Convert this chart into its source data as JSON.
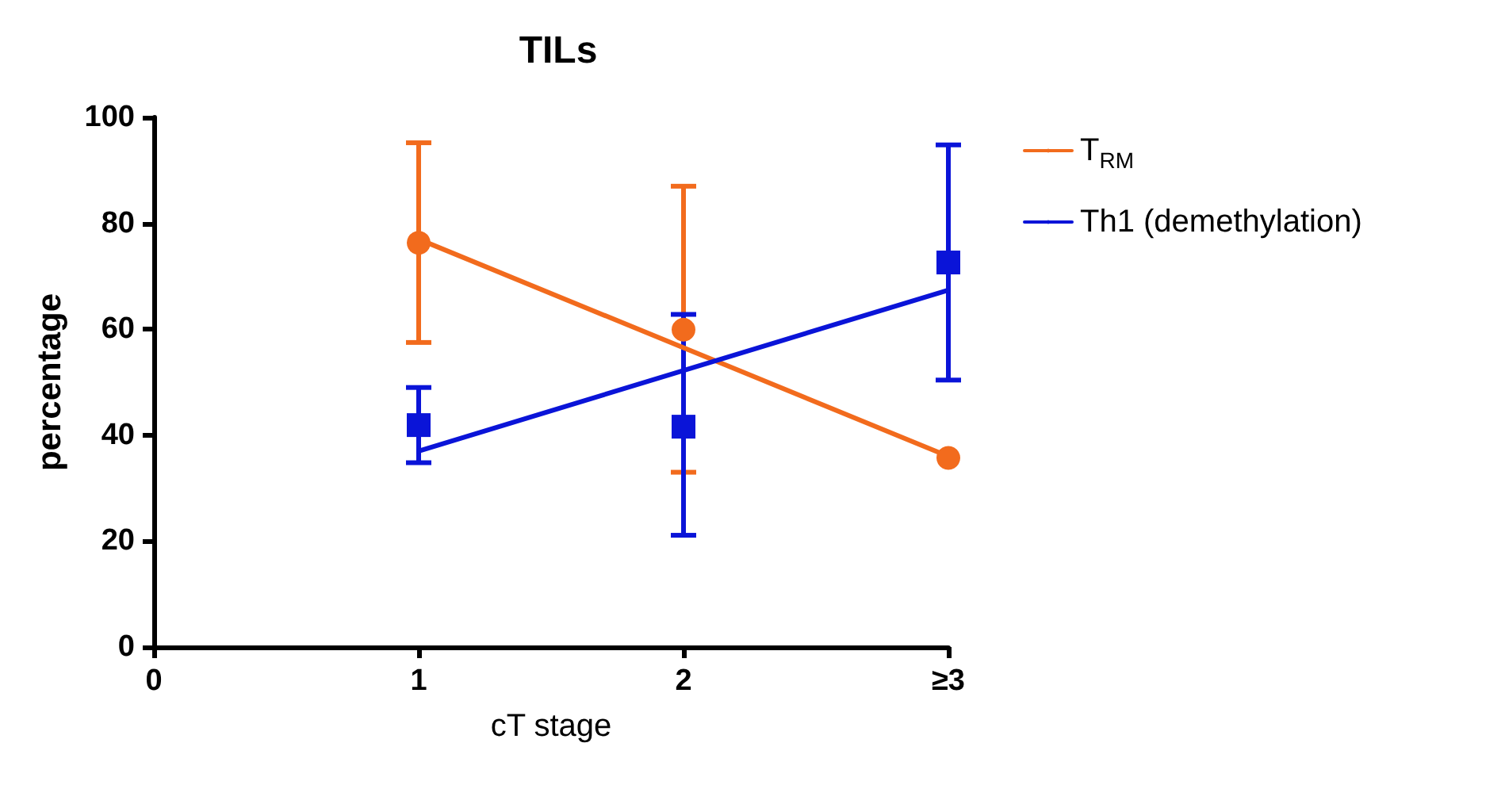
{
  "chart_data": {
    "type": "scatter",
    "title": "TILs",
    "xlabel": "cT stage",
    "ylabel": "percentage",
    "xlim": [
      0,
      3
    ],
    "xticks": [
      0,
      1,
      2,
      {
        "value": 3,
        "label": "≥3"
      }
    ],
    "ylim": [
      0,
      100
    ],
    "yticks": [
      0,
      20,
      40,
      60,
      80,
      100
    ],
    "grid": false,
    "legend": "right",
    "series": [
      {
        "color": "#f26b1d",
        "marker": "circle",
        "x": [
          1,
          2,
          3
        ],
        "values": [
          76.3,
          59.9,
          35.7
        ],
        "errors": [
          [
            57.5,
            95.2
          ],
          [
            33,
            87
          ],
          null
        ]
      },
      {
        "color": "#0a14d8",
        "marker": "square",
        "x": [
          1,
          2,
          3
        ],
        "values": [
          41.9,
          41.6,
          72.6
        ],
        "errors": [
          [
            34.8,
            49
          ],
          [
            21.1,
            62.8
          ],
          [
            50.4,
            94.8
          ]
        ]
      },
      {
        "type": "line",
        "name": "T$_{RM}$",
        "color": "#f26b1d",
        "marker": "none",
        "line_style": "solid",
        "x": [
          1,
          3
        ],
        "values": [
          77,
          36
        ]
      },
      {
        "type": "line",
        "name": "Th1 (demethylation)",
        "color": "#0a14d8",
        "marker": "none",
        "line_style": "solid",
        "x": [
          1,
          3
        ],
        "values": [
          37,
          67.4
        ]
      }
    ]
  }
}
